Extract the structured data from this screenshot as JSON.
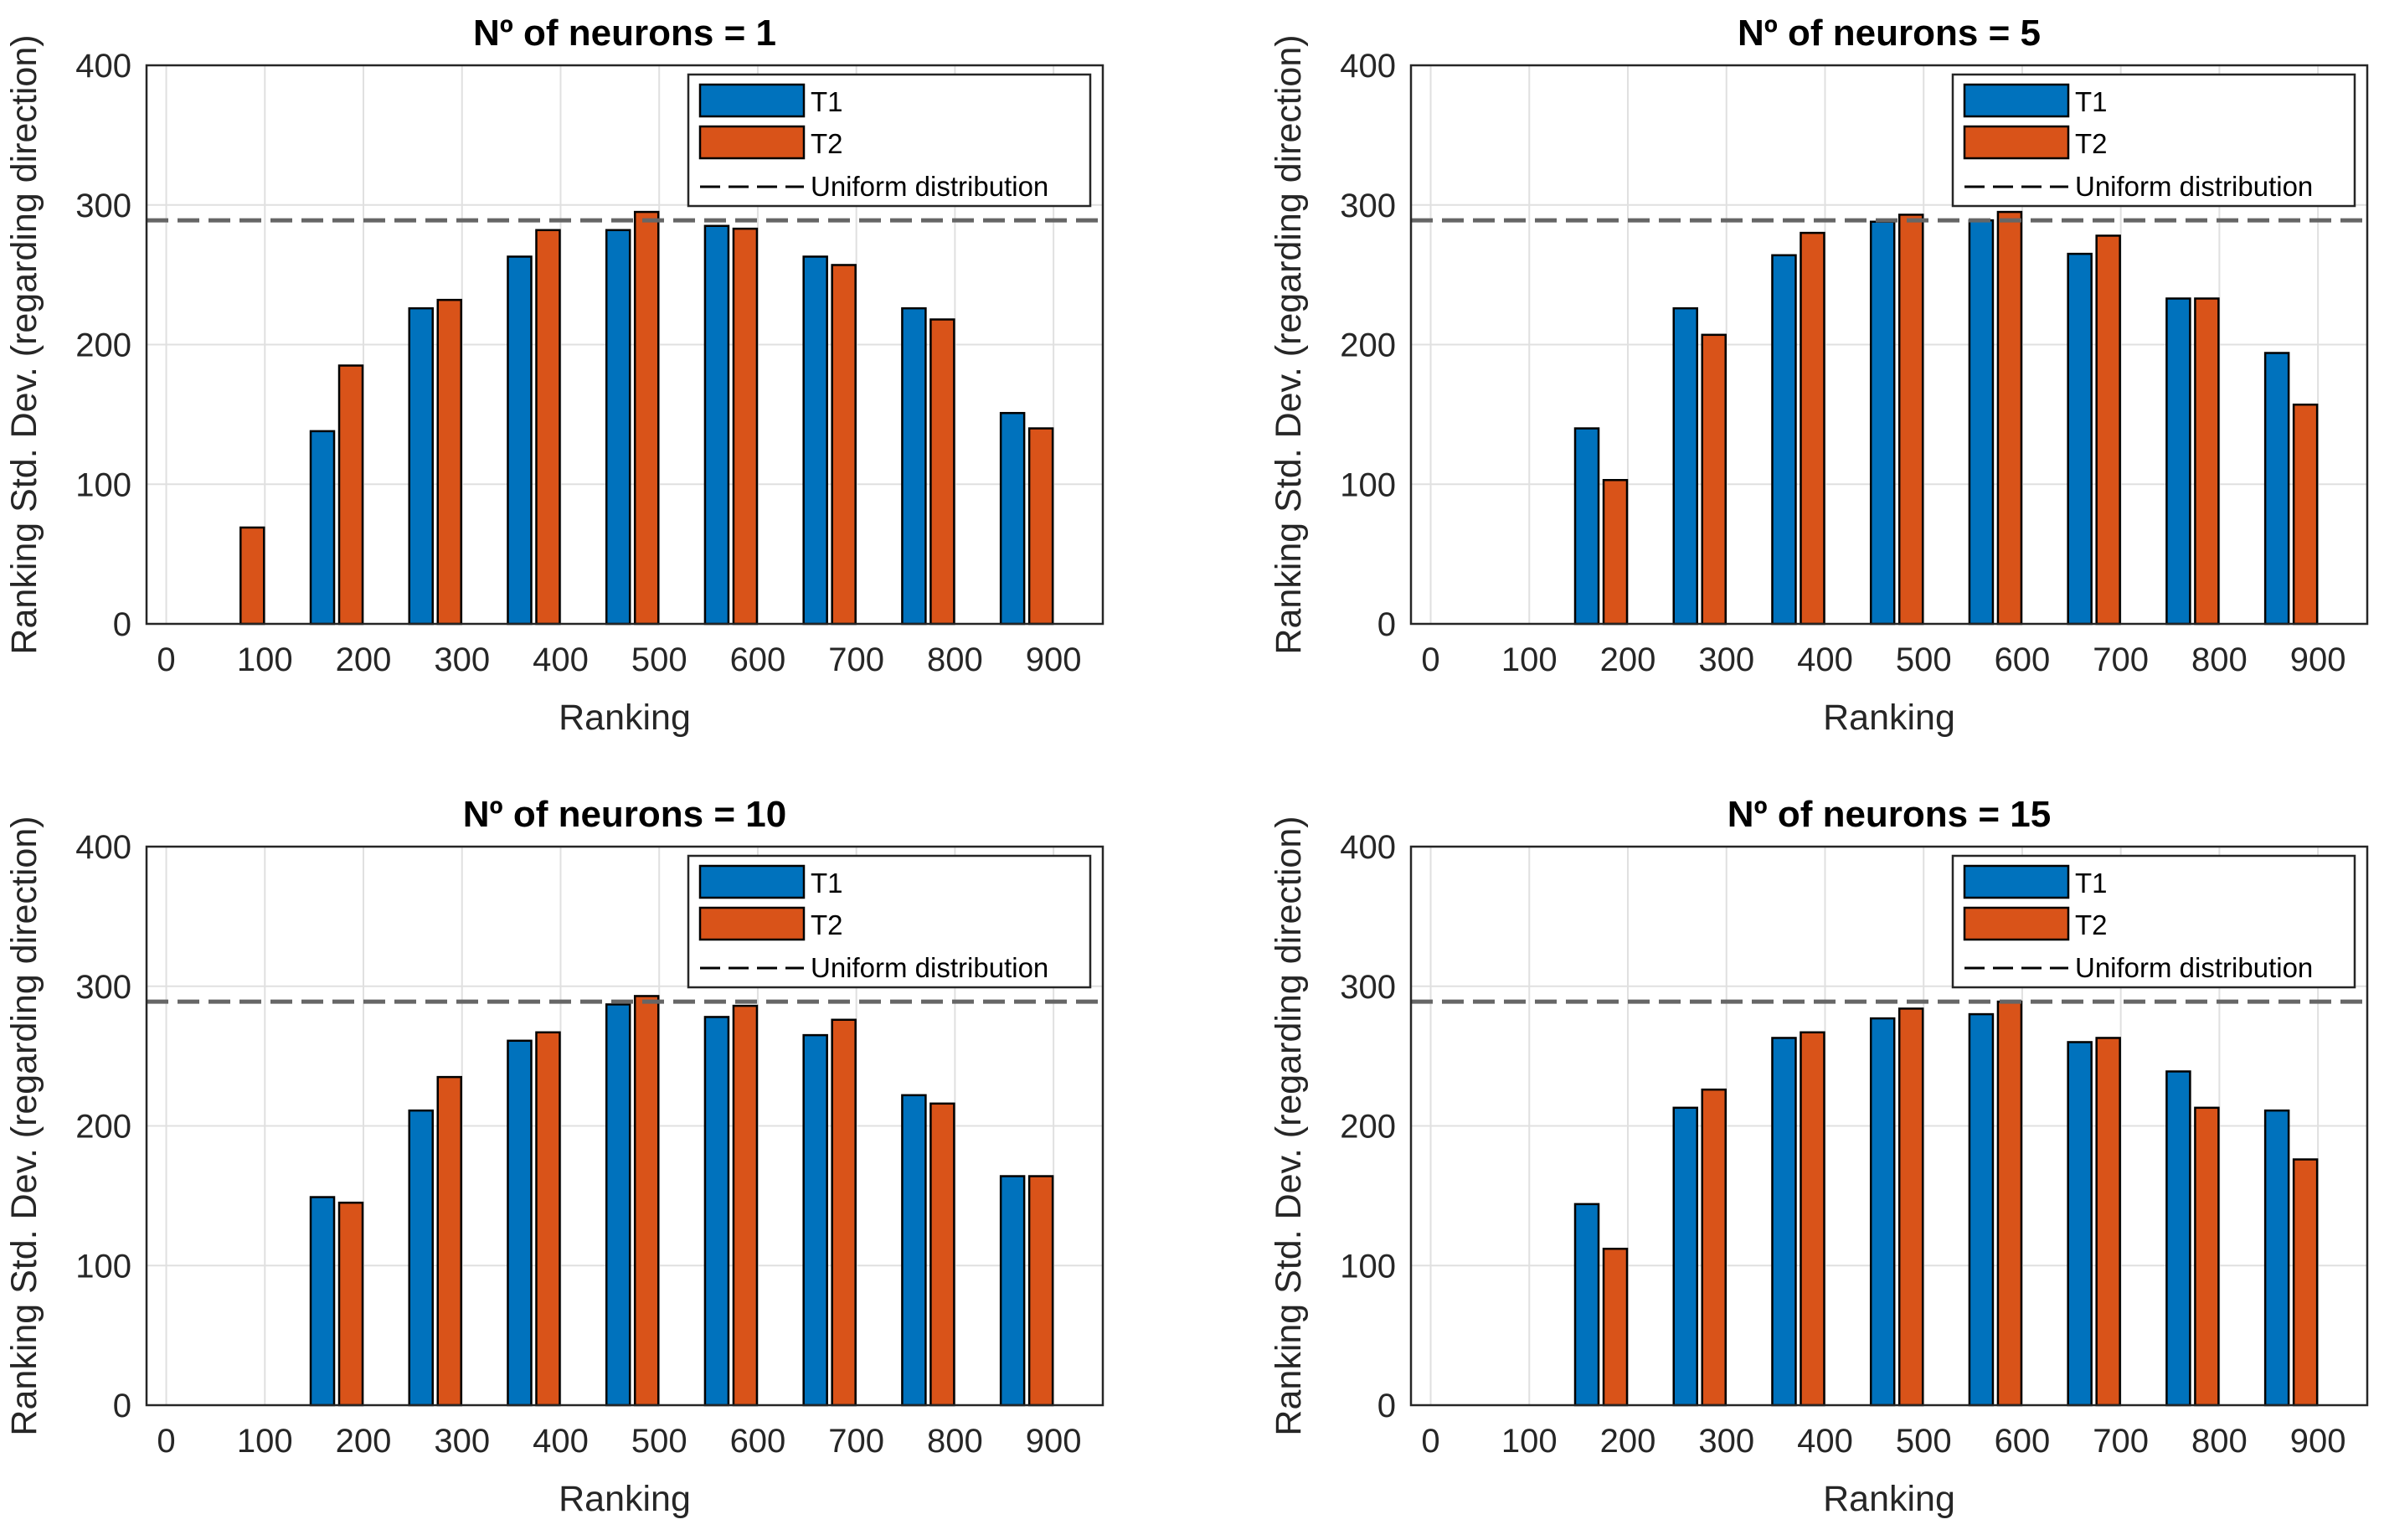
{
  "colors": {
    "T1": "#0072BD",
    "T2": "#D95319",
    "uniform": "#666666"
  },
  "chart_data": [
    {
      "type": "bar",
      "title": "Nº of neurons = 1",
      "xlabel": "Ranking",
      "ylabel": "Ranking Std. Dev. (regarding direction)",
      "categories": [
        100,
        200,
        300,
        400,
        500,
        600,
        700,
        800,
        900
      ],
      "series": [
        {
          "name": "T1",
          "values": [
            0,
            138,
            226,
            263,
            282,
            285,
            263,
            226,
            151
          ]
        },
        {
          "name": "T2",
          "values": [
            69,
            185,
            232,
            282,
            295,
            283,
            257,
            218,
            140
          ]
        }
      ],
      "reference_line": {
        "name": "Uniform distribution",
        "value": 289
      },
      "xticks": [
        "0",
        "100",
        "200",
        "300",
        "400",
        "500",
        "600",
        "700",
        "800",
        "900"
      ],
      "yticks": [
        "0",
        "100",
        "200",
        "300",
        "400"
      ],
      "xlim": [
        -20,
        950
      ],
      "ylim": [
        0,
        400
      ],
      "grid": true,
      "legend": "top-right"
    },
    {
      "type": "bar",
      "title": "Nº of neurons = 5",
      "xlabel": "Ranking",
      "ylabel": "Ranking Std. Dev. (regarding direction)",
      "categories": [
        100,
        200,
        300,
        400,
        500,
        600,
        700,
        800,
        900
      ],
      "series": [
        {
          "name": "T1",
          "values": [
            0,
            140,
            226,
            264,
            288,
            289,
            265,
            233,
            194
          ]
        },
        {
          "name": "T2",
          "values": [
            0,
            103,
            207,
            280,
            293,
            295,
            278,
            233,
            157
          ]
        }
      ],
      "reference_line": {
        "name": "Uniform distribution",
        "value": 289
      },
      "xticks": [
        "0",
        "100",
        "200",
        "300",
        "400",
        "500",
        "600",
        "700",
        "800",
        "900"
      ],
      "yticks": [
        "0",
        "100",
        "200",
        "300",
        "400"
      ],
      "xlim": [
        -20,
        950
      ],
      "ylim": [
        0,
        400
      ],
      "grid": true,
      "legend": "top-right"
    },
    {
      "type": "bar",
      "title": "Nº of neurons = 10",
      "xlabel": "Ranking",
      "ylabel": "Ranking Std. Dev. (regarding direction)",
      "categories": [
        100,
        200,
        300,
        400,
        500,
        600,
        700,
        800,
        900
      ],
      "series": [
        {
          "name": "T1",
          "values": [
            0,
            149,
            211,
            261,
            287,
            278,
            265,
            222,
            164
          ]
        },
        {
          "name": "T2",
          "values": [
            0,
            145,
            235,
            267,
            293,
            286,
            276,
            216,
            164
          ]
        }
      ],
      "reference_line": {
        "name": "Uniform distribution",
        "value": 289
      },
      "xticks": [
        "0",
        "100",
        "200",
        "300",
        "400",
        "500",
        "600",
        "700",
        "800",
        "900"
      ],
      "yticks": [
        "0",
        "100",
        "200",
        "300",
        "400"
      ],
      "xlim": [
        -20,
        950
      ],
      "ylim": [
        0,
        400
      ],
      "grid": true,
      "legend": "top-right"
    },
    {
      "type": "bar",
      "title": "Nº of neurons = 15",
      "xlabel": "Ranking",
      "ylabel": "Ranking Std. Dev. (regarding direction)",
      "categories": [
        100,
        200,
        300,
        400,
        500,
        600,
        700,
        800,
        900
      ],
      "series": [
        {
          "name": "T1",
          "values": [
            0,
            144,
            213,
            263,
            277,
            280,
            260,
            239,
            211
          ]
        },
        {
          "name": "T2",
          "values": [
            0,
            112,
            226,
            267,
            284,
            289,
            263,
            213,
            176
          ]
        }
      ],
      "reference_line": {
        "name": "Uniform distribution",
        "value": 289
      },
      "xticks": [
        "0",
        "100",
        "200",
        "300",
        "400",
        "500",
        "600",
        "700",
        "800",
        "900"
      ],
      "yticks": [
        "0",
        "100",
        "200",
        "300",
        "400"
      ],
      "xlim": [
        -20,
        950
      ],
      "ylim": [
        0,
        400
      ],
      "grid": true,
      "legend": "top-right"
    }
  ]
}
